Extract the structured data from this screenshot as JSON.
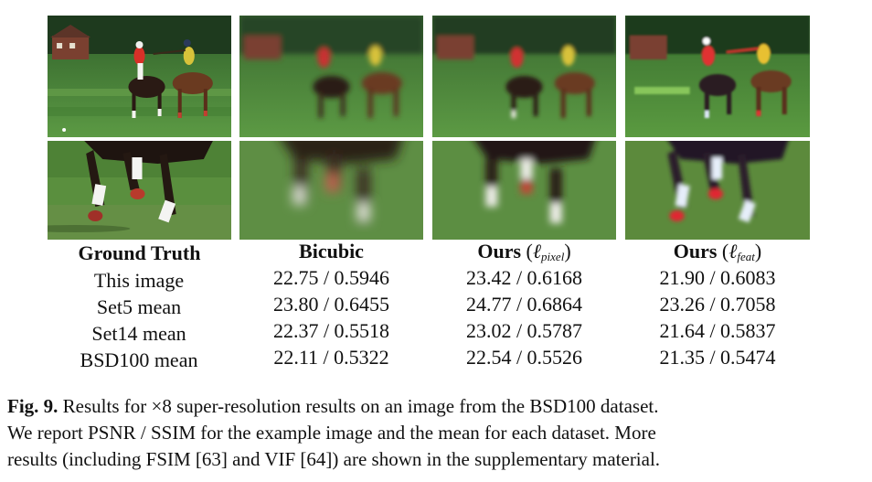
{
  "columns": [
    {
      "key": "gt",
      "label": "Ground Truth"
    },
    {
      "key": "bicubic",
      "label": "Bicubic"
    },
    {
      "key": "pixel",
      "label_main": "Ours",
      "label_loss": "ℓ",
      "label_sub": "pixel"
    },
    {
      "key": "feat",
      "label_main": "Ours",
      "label_loss": "ℓ",
      "label_sub": "feat"
    }
  ],
  "rows": [
    {
      "label": "This image",
      "values": [
        "22.75 / 0.5946",
        "23.42 / 0.6168",
        "21.90 / 0.6083"
      ]
    },
    {
      "label": "Set5 mean",
      "values": [
        "23.80 / 0.6455",
        "24.77 / 0.6864",
        "23.26 / 0.7058"
      ]
    },
    {
      "label": "Set14 mean",
      "values": [
        "22.37 / 0.5518",
        "23.02 / 0.5787",
        "21.64 / 0.5837"
      ]
    },
    {
      "label": "BSD100 mean",
      "values": [
        "22.11 / 0.5322",
        "22.54 / 0.5526",
        "21.35 / 0.5474"
      ]
    }
  ],
  "caption": {
    "fig_label": "Fig. 9.",
    "line1": "Results for ×8 super-resolution results on an image from the BSD100 dataset.",
    "line2": "We report PSNR / SSIM for the example image and the mean for each dataset. More",
    "line3": "results (including FSIM [63] and VIF [64]) are shown in the supplementary material."
  },
  "colors": {
    "grass": "#4f8a3a",
    "trees": "#1e3a1e",
    "horse_brown": "#5a2e1a",
    "rider_red": "#c8242a",
    "rider_yellow": "#d8c23a"
  }
}
